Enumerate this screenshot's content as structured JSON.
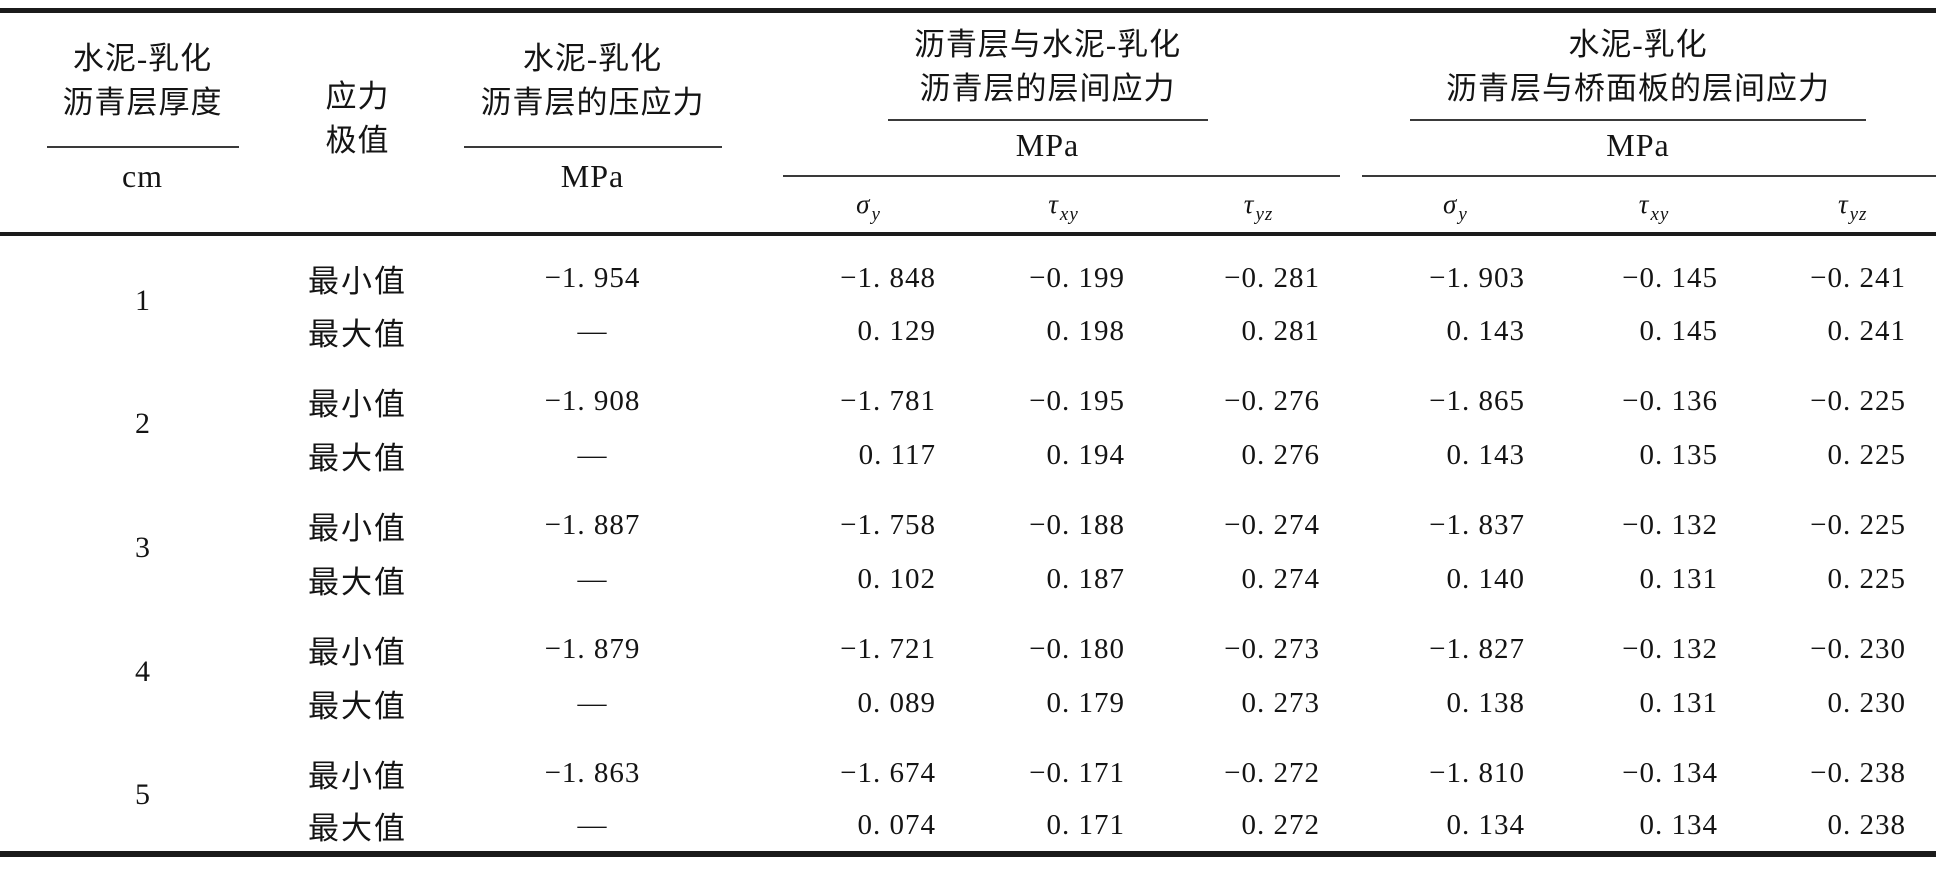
{
  "page": {
    "background": "#ffffff",
    "text_color": "#141414",
    "rule_color": "#1b1b1b"
  },
  "table": {
    "columns": {
      "thickness": {
        "title_line1": "水泥-乳化",
        "title_line2": "沥青层厚度",
        "unit": "cm"
      },
      "extreme": {
        "title_line1": "应力",
        "title_line2": "极值"
      },
      "compressive": {
        "title_line1": "水泥-乳化",
        "title_line2": "沥青层的压应力",
        "unit": "MPa"
      },
      "interface_asphalt_cement": {
        "title_line1": "沥青层与水泥-乳化",
        "title_line2": "沥青层的层间应力",
        "unit": "MPa",
        "subcols": [
          {
            "base": "σ",
            "sub": "y"
          },
          {
            "base": "τ",
            "sub": "xy"
          },
          {
            "base": "τ",
            "sub": "yz"
          }
        ]
      },
      "interface_cement_deck": {
        "title_line1": "水泥-乳化",
        "title_line2": "沥青层与桥面板的层间应力",
        "unit": "MPa",
        "subcols": [
          {
            "base": "σ",
            "sub": "y"
          },
          {
            "base": "τ",
            "sub": "xy"
          },
          {
            "base": "τ",
            "sub": "yz"
          }
        ]
      }
    },
    "rows": [
      {
        "t": "1",
        "e": "最小值",
        "v": [
          "−1. 954",
          "−1. 848",
          "−0. 199",
          "−0. 281",
          "−1. 903",
          "−0. 145",
          "−0. 241"
        ]
      },
      {
        "t": "",
        "e": "最大值",
        "v": [
          "—",
          "0. 129",
          "0. 198",
          "0. 281",
          "0. 143",
          "0. 145",
          "0. 241"
        ]
      },
      {
        "t": "2",
        "e": "最小值",
        "v": [
          "−1. 908",
          "−1. 781",
          "−0. 195",
          "−0. 276",
          "−1. 865",
          "−0. 136",
          "−0. 225"
        ]
      },
      {
        "t": "",
        "e": "最大值",
        "v": [
          "—",
          "0. 117",
          "0. 194",
          "0. 276",
          "0. 143",
          "0. 135",
          "0. 225"
        ]
      },
      {
        "t": "3",
        "e": "最小值",
        "v": [
          "−1. 887",
          "−1. 758",
          "−0. 188",
          "−0. 274",
          "−1. 837",
          "−0. 132",
          "−0. 225"
        ]
      },
      {
        "t": "",
        "e": "最大值",
        "v": [
          "—",
          "0. 102",
          "0. 187",
          "0. 274",
          "0. 140",
          "0. 131",
          "0. 225"
        ]
      },
      {
        "t": "4",
        "e": "最小值",
        "v": [
          "−1. 879",
          "−1. 721",
          "−0. 180",
          "−0. 273",
          "−1. 827",
          "−0. 132",
          "−0. 230"
        ]
      },
      {
        "t": "",
        "e": "最大值",
        "v": [
          "—",
          "0. 089",
          "0. 179",
          "0. 273",
          "0. 138",
          "0. 131",
          "0. 230"
        ]
      },
      {
        "t": "5",
        "e": "最小值",
        "v": [
          "−1. 863",
          "−1. 674",
          "−0. 171",
          "−0. 272",
          "−1. 810",
          "−0. 134",
          "−0. 238"
        ]
      },
      {
        "t": "",
        "e": "最大值",
        "v": [
          "—",
          "0. 074",
          "0. 171",
          "0. 272",
          "0. 134",
          "0. 134",
          "0. 238"
        ]
      }
    ]
  }
}
